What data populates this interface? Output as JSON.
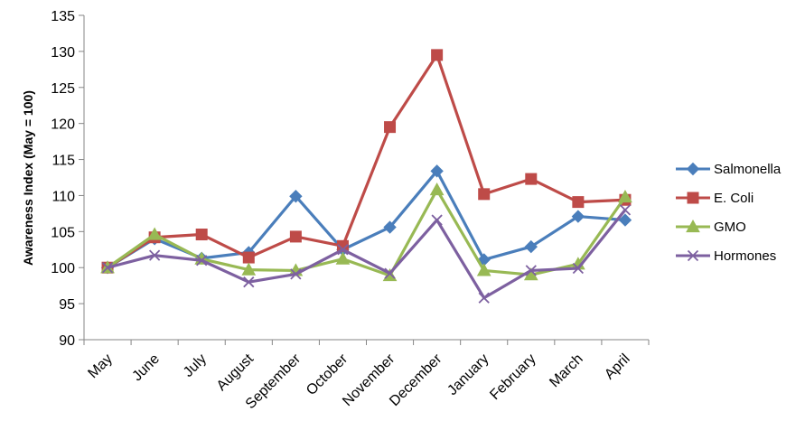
{
  "chart_data": {
    "type": "line",
    "title": "",
    "xlabel": "",
    "ylabel": "Awareness Index (May = 100)",
    "ylim": [
      90,
      135
    ],
    "yticks": [
      90,
      95,
      100,
      105,
      110,
      115,
      120,
      125,
      130,
      135
    ],
    "grid": false,
    "legend_position": "right",
    "categories": [
      "May",
      "June",
      "July",
      "August",
      "September",
      "October",
      "November",
      "December",
      "January",
      "February",
      "March",
      "April"
    ],
    "series": [
      {
        "name": "Salmonella",
        "color": "#4a7ebb",
        "marker": "diamond",
        "values": [
          100,
          104,
          101.3,
          102.1,
          109.9,
          102.5,
          105.6,
          113.4,
          101.1,
          102.9,
          107.1,
          106.6
        ]
      },
      {
        "name": "E. Coli",
        "color": "#be4b48",
        "marker": "square",
        "values": [
          100,
          104.2,
          104.6,
          101.4,
          104.3,
          103,
          119.5,
          129.5,
          110.2,
          112.3,
          109.1,
          109.4
        ]
      },
      {
        "name": "GMO",
        "color": "#98b954",
        "marker": "triangle",
        "values": [
          100,
          104.6,
          101.2,
          99.7,
          99.6,
          101.2,
          98.9,
          110.8,
          99.6,
          99,
          100.5,
          109.8
        ]
      },
      {
        "name": "Hormones",
        "color": "#7d60a0",
        "marker": "x",
        "values": [
          100,
          101.7,
          101,
          98,
          99.1,
          102.5,
          99.2,
          106.6,
          95.8,
          99.6,
          99.9,
          108
        ]
      }
    ]
  }
}
